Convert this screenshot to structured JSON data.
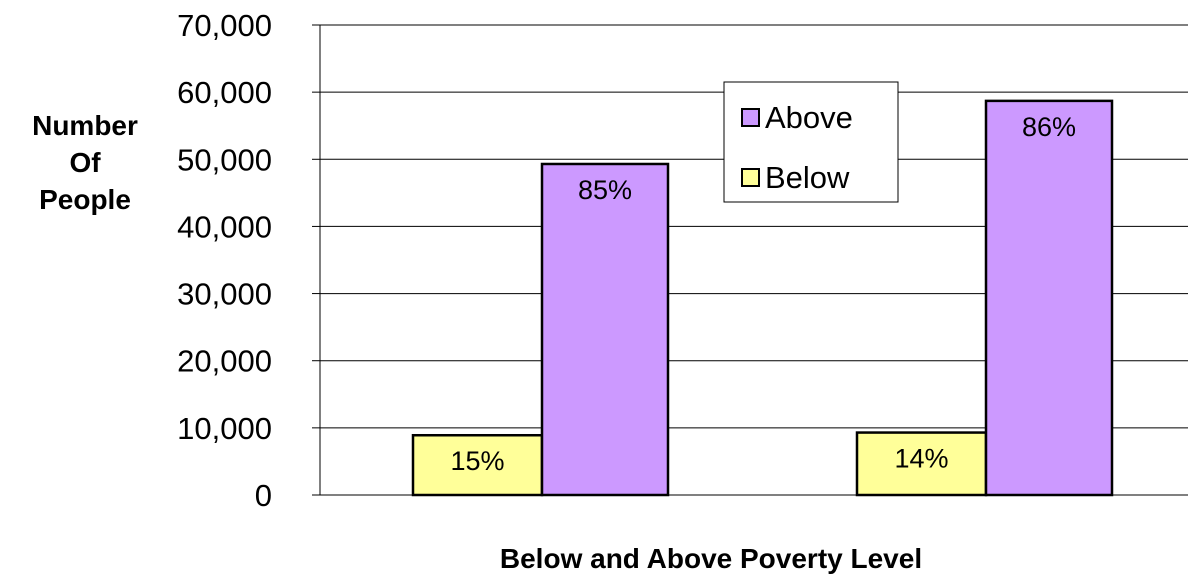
{
  "chart_data": {
    "type": "bar",
    "categories": [
      "",
      ""
    ],
    "series": [
      {
        "name": "Below",
        "values": [
          8900,
          9300
        ],
        "labels": [
          "15%",
          "14%"
        ],
        "color": "#FFFF99"
      },
      {
        "name": "Above",
        "values": [
          49300,
          58700
        ],
        "labels": [
          "85%",
          "86%"
        ],
        "color": "#CC99FF"
      }
    ],
    "title": "",
    "xlabel": "Below and Above Poverty Level",
    "ylabel_lines": [
      "Number",
      "Of",
      "People"
    ],
    "ylim": [
      0,
      70000
    ],
    "yticks": [
      "0",
      "10,000",
      "20,000",
      "30,000",
      "40,000",
      "50,000",
      "60,000",
      "70,000"
    ],
    "grid": true,
    "legend": {
      "placement": "top-center",
      "entries": [
        "Above",
        "Below"
      ]
    }
  }
}
